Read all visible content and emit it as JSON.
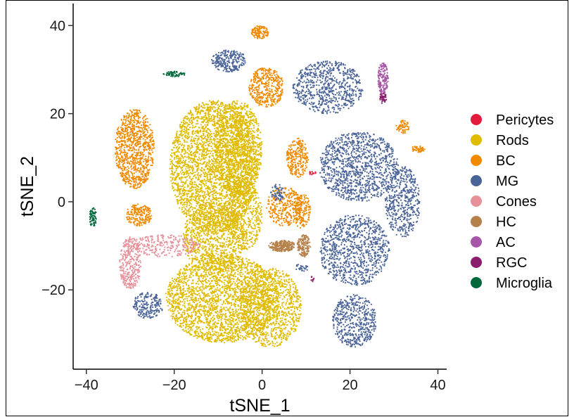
{
  "chart_data": {
    "type": "scatter",
    "title": "",
    "xlabel": "tSNE_1",
    "ylabel": "tSNE_2",
    "xlim": [
      -43,
      42
    ],
    "ylim": [
      -38,
      45
    ],
    "xticks": [
      -40,
      -20,
      0,
      20,
      40
    ],
    "xtick_labels": [
      "−40",
      "−20",
      "0",
      "20",
      "40"
    ],
    "yticks": [
      -20,
      0,
      20,
      40
    ],
    "ytick_labels": [
      "−20",
      "0",
      "20",
      "40"
    ],
    "grid": false,
    "legend_position": "right",
    "series": [
      {
        "name": "Pericytes",
        "color": "#E31A3C",
        "clusters": [
          {
            "cx": 11.5,
            "cy": 6.5,
            "rx": 0.8,
            "ry": 0.5,
            "n": 15
          }
        ]
      },
      {
        "name": "Rods",
        "color": "#E0BB00",
        "clusters": [
          {
            "cx": -11,
            "cy": 8,
            "rx": 10,
            "ry": 15,
            "n": 2800
          },
          {
            "cx": -5.5,
            "cy": 12,
            "rx": 5.5,
            "ry": 11,
            "n": 1100
          },
          {
            "cx": -9,
            "cy": -22,
            "rx": 13,
            "ry": 10,
            "n": 2500
          },
          {
            "cx": 2,
            "cy": -24,
            "rx": 7,
            "ry": 9,
            "n": 900
          },
          {
            "cx": -11,
            "cy": -8,
            "rx": 7,
            "ry": 8,
            "n": 900
          },
          {
            "cx": -4,
            "cy": -3,
            "rx": 4,
            "ry": 8,
            "n": 500
          }
        ]
      },
      {
        "name": "BC",
        "color": "#F08A00",
        "clusters": [
          {
            "cx": -29,
            "cy": 12,
            "rx": 4.5,
            "ry": 9,
            "n": 900
          },
          {
            "cx": 1,
            "cy": 26,
            "rx": 4,
            "ry": 4.5,
            "n": 400
          },
          {
            "cx": 8,
            "cy": 10,
            "rx": 2.5,
            "ry": 4.5,
            "n": 250
          },
          {
            "cx": 5,
            "cy": -1,
            "rx": 4,
            "ry": 4.5,
            "n": 300
          },
          {
            "cx": 9,
            "cy": -2,
            "rx": 2,
            "ry": 4,
            "n": 150
          },
          {
            "cx": -28,
            "cy": -3,
            "rx": 3,
            "ry": 2.5,
            "n": 200
          },
          {
            "cx": -0.5,
            "cy": 38.5,
            "rx": 2,
            "ry": 1.5,
            "n": 120
          },
          {
            "cx": 32,
            "cy": 17,
            "rx": 1.5,
            "ry": 1.5,
            "n": 60
          },
          {
            "cx": 35.5,
            "cy": 12,
            "rx": 1.5,
            "ry": 0.8,
            "n": 50
          }
        ]
      },
      {
        "name": "MG",
        "color": "#4A6499",
        "clusters": [
          {
            "cx": 15,
            "cy": 26,
            "rx": 8,
            "ry": 6,
            "n": 700
          },
          {
            "cx": -7.5,
            "cy": 32,
            "rx": 4,
            "ry": 2.5,
            "n": 250
          },
          {
            "cx": 22,
            "cy": 8,
            "rx": 9,
            "ry": 8,
            "n": 1100
          },
          {
            "cx": 32,
            "cy": 0,
            "rx": 4,
            "ry": 8,
            "n": 500
          },
          {
            "cx": 21,
            "cy": -11,
            "rx": 8,
            "ry": 8,
            "n": 900
          },
          {
            "cx": 21,
            "cy": -27,
            "rx": 5,
            "ry": 6,
            "n": 500
          },
          {
            "cx": -26,
            "cy": -23.5,
            "rx": 3.5,
            "ry": 3,
            "n": 200
          },
          {
            "cx": 3.5,
            "cy": 2,
            "rx": 1.5,
            "ry": 2,
            "n": 60
          },
          {
            "cx": 9,
            "cy": -15,
            "rx": 1.5,
            "ry": 1,
            "n": 30
          }
        ]
      },
      {
        "name": "Cones",
        "color": "#E8909A",
        "clusters": [
          {
            "cx": -30,
            "cy": -14,
            "rx": 2.5,
            "ry": 6,
            "n": 300
          },
          {
            "cx": -22,
            "cy": -10,
            "rx": 8,
            "ry": 2.5,
            "n": 250
          }
        ]
      },
      {
        "name": "HC",
        "color": "#B5804A",
        "clusters": [
          {
            "cx": 4.5,
            "cy": -10,
            "rx": 3,
            "ry": 1.3,
            "n": 250
          },
          {
            "cx": 9.5,
            "cy": -10,
            "rx": 1.5,
            "ry": 2.5,
            "n": 150
          }
        ]
      },
      {
        "name": "AC",
        "color": "#A856A8",
        "clusters": [
          {
            "cx": 27.5,
            "cy": 28,
            "rx": 1.2,
            "ry": 3.5,
            "n": 150
          }
        ]
      },
      {
        "name": "RGC",
        "color": "#8B1E6C",
        "clusters": [
          {
            "cx": 27.5,
            "cy": 23.5,
            "rx": 0.8,
            "ry": 1.3,
            "n": 40
          },
          {
            "cx": 11.5,
            "cy": -17.5,
            "rx": 0.4,
            "ry": 0.6,
            "n": 8
          }
        ]
      },
      {
        "name": "Microglia",
        "color": "#00693C",
        "clusters": [
          {
            "cx": -38.5,
            "cy": -3.5,
            "rx": 0.8,
            "ry": 2.2,
            "n": 70
          },
          {
            "cx": -20,
            "cy": 29,
            "rx": 2.5,
            "ry": 0.6,
            "n": 60
          }
        ]
      }
    ]
  }
}
